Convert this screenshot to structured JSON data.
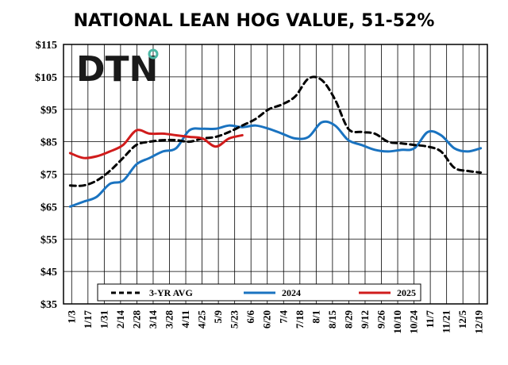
{
  "chart_data": {
    "type": "line",
    "title": "NATIONAL LEAN HOG VALUE, 51-52%",
    "logo_text": "DTN",
    "y_ticks": [
      "$35",
      "$45",
      "$55",
      "$65",
      "$75",
      "$85",
      "$95",
      "$105",
      "$115"
    ],
    "ylim": [
      35,
      115
    ],
    "x_tick_labels": [
      "1/3",
      "1/17",
      "1/31",
      "2/14",
      "2/28",
      "3/14",
      "3/28",
      "4/11",
      "4/25",
      "5/9",
      "5/23",
      "6/6",
      "6/20",
      "7/4",
      "7/18",
      "8/1",
      "8/15",
      "8/29",
      "9/12",
      "9/26",
      "10/10",
      "10/24",
      "11/7",
      "11/21",
      "12/5",
      "12/19"
    ],
    "grid": true,
    "legend_position": "bottom",
    "series": [
      {
        "name": "3-YR AVG",
        "color": "#000000",
        "dash": true,
        "values": [
          71.5,
          71.5,
          73,
          76,
          80,
          84,
          85,
          85.5,
          85.5,
          85,
          86,
          86.5,
          88,
          90,
          92,
          95,
          96.5,
          99,
          104.5,
          104,
          98,
          89,
          88,
          87.5,
          85,
          84.5,
          84,
          83.5,
          82,
          77,
          76,
          75.5
        ]
      },
      {
        "name": "2024",
        "color": "#1a73c0",
        "dash": false,
        "values": [
          65,
          66.5,
          68,
          72,
          73,
          78,
          80,
          82,
          83,
          88.5,
          89,
          89,
          90,
          89.5,
          90,
          89,
          87.5,
          86,
          86.5,
          91,
          90,
          85.5,
          84,
          82.5,
          82,
          82.5,
          83,
          88,
          87,
          83,
          82,
          83
        ]
      },
      {
        "name": "2025",
        "color": "#d01c1c",
        "dash": false,
        "values": [
          81.5,
          80,
          80.5,
          82,
          84,
          88.5,
          87.5,
          87.5,
          87,
          86.5,
          86,
          83.5,
          86,
          87
        ]
      }
    ]
  }
}
